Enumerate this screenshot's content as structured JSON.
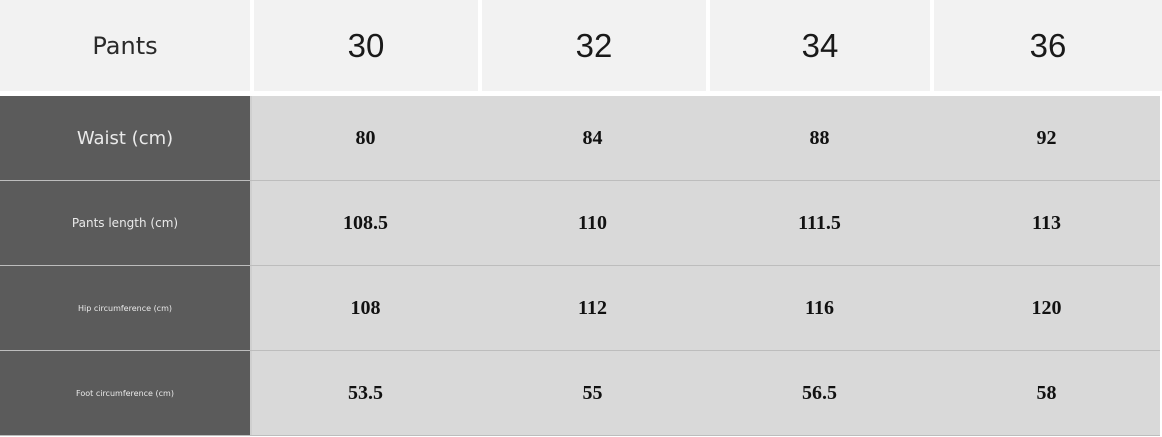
{
  "header": {
    "corner": "Pants",
    "sizes": [
      "30",
      "32",
      "34",
      "36"
    ]
  },
  "rows": [
    {
      "label": "Waist (cm)",
      "values": [
        "80",
        "84",
        "88",
        "92"
      ]
    },
    {
      "label": "Pants length (cm)",
      "values": [
        "108.5",
        "110",
        "111.5",
        "113"
      ]
    },
    {
      "label": "Hip circumference (cm)",
      "values": [
        "108",
        "112",
        "116",
        "120"
      ]
    },
    {
      "label": "Foot circumference (cm)",
      "values": [
        "53.5",
        "55",
        "56.5",
        "58"
      ]
    }
  ],
  "colors": {
    "header_bg": "#f2f2f2",
    "label_bg": "#5b5b5b",
    "cell_bg": "#d9d9d9"
  }
}
